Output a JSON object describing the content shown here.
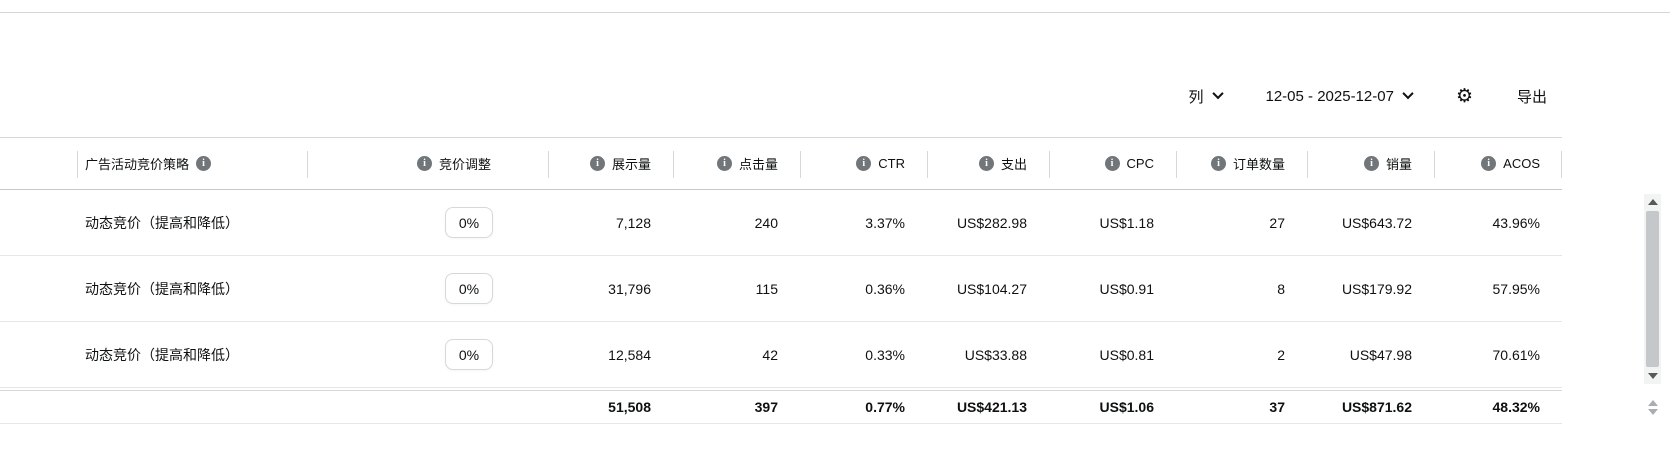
{
  "colors": {
    "text": "#0f1111",
    "row_border": "#e7e7e7",
    "header_border": "#d5d9d9",
    "info_icon_bg": "#71767a"
  },
  "toolbar": {
    "columns_label": "列",
    "date_range": "12-05 - 2025-12-07",
    "export_label": "导出"
  },
  "table": {
    "columns": [
      {
        "label": "广告活动竞价策略",
        "info_position": "after"
      },
      {
        "label": "竞价调整",
        "info_position": "before"
      },
      {
        "label": "展示量",
        "info_position": "before"
      },
      {
        "label": "点击量",
        "info_position": "before"
      },
      {
        "label": "CTR",
        "info_position": "before"
      },
      {
        "label": "支出",
        "info_position": "before"
      },
      {
        "label": "CPC",
        "info_position": "before"
      },
      {
        "label": "订单数量",
        "info_position": "before"
      },
      {
        "label": "销量",
        "info_position": "before"
      },
      {
        "label": "ACOS",
        "info_position": "before"
      }
    ],
    "rows": [
      {
        "strategy": "动态竞价（提高和降低）",
        "bid_adjustment": "0%",
        "impressions": "7,128",
        "clicks": "240",
        "ctr": "3.37%",
        "spend": "US$282.98",
        "cpc": "US$1.18",
        "orders": "27",
        "sales": "US$643.72",
        "acos": "43.96%"
      },
      {
        "strategy": "动态竞价（提高和降低）",
        "bid_adjustment": "0%",
        "impressions": "31,796",
        "clicks": "115",
        "ctr": "0.36%",
        "spend": "US$104.27",
        "cpc": "US$0.91",
        "orders": "8",
        "sales": "US$179.92",
        "acos": "57.95%"
      },
      {
        "strategy": "动态竞价（提高和降低）",
        "bid_adjustment": "0%",
        "impressions": "12,584",
        "clicks": "42",
        "ctr": "0.33%",
        "spend": "US$33.88",
        "cpc": "US$0.81",
        "orders": "2",
        "sales": "US$47.98",
        "acos": "70.61%"
      }
    ],
    "totals": {
      "impressions": "51,508",
      "clicks": "397",
      "ctr": "0.77%",
      "spend": "US$421.13",
      "cpc": "US$1.06",
      "orders": "37",
      "sales": "US$871.62",
      "acos": "48.32%"
    }
  }
}
